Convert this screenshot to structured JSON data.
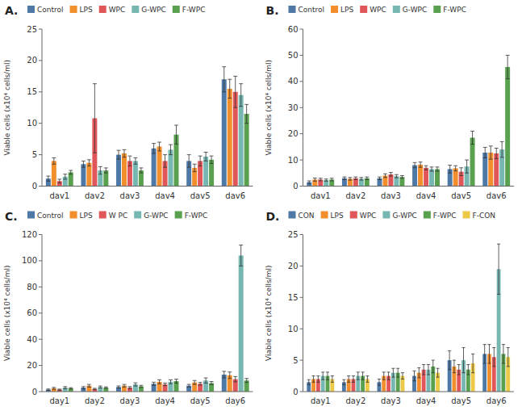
{
  "chart_data": [
    {
      "type": "bar",
      "title": "A.",
      "categories": [
        "dav1",
        "dav2",
        "dav3",
        "dav4",
        "dav5",
        "dav6"
      ],
      "ylabel": "Viable cells (x10⁴ cells/ml)",
      "ylim": [
        0,
        25
      ],
      "yticks": [
        0,
        5,
        10,
        15,
        20,
        25
      ],
      "grid": false,
      "legend": "upper left",
      "series": [
        {
          "name": "Control",
          "values": [
            1.2,
            3.5,
            5.0,
            6.0,
            4.0,
            17.0
          ],
          "errors": [
            0.4,
            0.5,
            0.7,
            0.8,
            1.0,
            2.0
          ]
        },
        {
          "name": "LPS",
          "values": [
            4.0,
            3.7,
            5.2,
            6.3,
            2.9,
            15.5
          ],
          "errors": [
            0.5,
            0.5,
            0.6,
            0.7,
            0.6,
            1.5
          ]
        },
        {
          "name": "WPC",
          "values": [
            0.8,
            10.8,
            4.0,
            4.0,
            4.0,
            15.0
          ],
          "errors": [
            0.3,
            5.5,
            0.8,
            1.0,
            0.8,
            2.5
          ]
        },
        {
          "name": "G-WPC",
          "values": [
            1.5,
            2.5,
            4.0,
            5.8,
            4.7,
            14.5
          ],
          "errors": [
            0.4,
            0.6,
            0.5,
            0.8,
            0.7,
            1.8
          ]
        },
        {
          "name": "F-WPC",
          "values": [
            2.2,
            2.5,
            2.5,
            8.2,
            4.2,
            11.5
          ],
          "errors": [
            0.3,
            0.4,
            0.4,
            1.5,
            0.6,
            1.5
          ]
        }
      ]
    },
    {
      "type": "bar",
      "title": "B.",
      "categories": [
        "dav1",
        "dav2",
        "dav3",
        "dav4",
        "dav5",
        "dav6"
      ],
      "ylabel": "Viable cells (x10⁴ cells/ml)",
      "ylim": [
        0,
        60
      ],
      "yticks": [
        0,
        10,
        20,
        30,
        40,
        50,
        60
      ],
      "grid": false,
      "legend": "upper left",
      "series": [
        {
          "name": "Control",
          "values": [
            1.5,
            3.0,
            3.0,
            8.0,
            6.5,
            12.8
          ],
          "errors": [
            0.5,
            0.5,
            0.5,
            1.0,
            1.5,
            2.0
          ]
        },
        {
          "name": "LPS",
          "values": [
            2.5,
            2.8,
            4.0,
            8.2,
            6.8,
            12.8
          ],
          "errors": [
            0.6,
            0.5,
            0.7,
            1.0,
            1.0,
            2.5
          ]
        },
        {
          "name": "WPC",
          "values": [
            2.5,
            3.0,
            4.5,
            7.0,
            5.5,
            12.5
          ],
          "errors": [
            0.5,
            0.5,
            0.7,
            0.8,
            1.5,
            2.0
          ]
        },
        {
          "name": "G-WPC",
          "values": [
            2.3,
            2.8,
            3.8,
            6.5,
            7.5,
            14.0
          ],
          "errors": [
            0.4,
            0.5,
            0.6,
            0.8,
            2.5,
            3.0
          ]
        },
        {
          "name": "F-WPC",
          "values": [
            2.5,
            3.0,
            3.5,
            6.5,
            18.5,
            45.5
          ],
          "errors": [
            0.5,
            0.5,
            0.5,
            0.8,
            2.5,
            4.5
          ]
        }
      ]
    },
    {
      "type": "bar",
      "title": "C.",
      "categories": [
        "day1",
        "day2",
        "day3",
        "day4",
        "day5",
        "day6"
      ],
      "ylabel": "Viable cells (x10⁴ cells/ml)",
      "ylim": [
        0,
        120
      ],
      "yticks": [
        0,
        20,
        40,
        60,
        80,
        100,
        120
      ],
      "grid": false,
      "legend": "upper left",
      "series": [
        {
          "name": "Control",
          "values": [
            1.5,
            3.0,
            3.5,
            6.0,
            4.5,
            13.0
          ],
          "errors": [
            0.5,
            0.8,
            0.8,
            1.2,
            1.0,
            2.5
          ]
        },
        {
          "name": "LPS",
          "values": [
            2.5,
            4.5,
            4.5,
            7.5,
            7.0,
            12.5
          ],
          "errors": [
            0.7,
            1.0,
            1.0,
            1.5,
            1.5,
            2.5
          ]
        },
        {
          "name": "W PC",
          "values": [
            1.5,
            2.0,
            3.0,
            5.5,
            6.0,
            9.5
          ],
          "errors": [
            0.4,
            0.5,
            0.8,
            1.0,
            1.0,
            2.0
          ]
        },
        {
          "name": "G-WPC",
          "values": [
            3.0,
            3.5,
            5.5,
            7.5,
            8.5,
            104.0
          ],
          "errors": [
            0.8,
            0.8,
            1.2,
            1.5,
            2.0,
            8.0
          ]
        },
        {
          "name": "F-WPC",
          "values": [
            2.5,
            3.0,
            4.0,
            8.0,
            6.5,
            8.5
          ],
          "errors": [
            0.5,
            0.6,
            0.8,
            1.5,
            1.2,
            1.5
          ]
        }
      ]
    },
    {
      "type": "bar",
      "title": "D.",
      "categories": [
        "day1",
        "day2",
        "day3",
        "day4",
        "day5",
        "day6"
      ],
      "ylabel": "Viable cells (x10⁴ cells/ml)",
      "ylim": [
        0,
        25
      ],
      "yticks": [
        0,
        5,
        10,
        15,
        20,
        25
      ],
      "grid": false,
      "legend": "upper left",
      "series": [
        {
          "name": "CON",
          "values": [
            1.5,
            1.5,
            1.5,
            2.5,
            5.0,
            6.0
          ],
          "errors": [
            0.4,
            0.4,
            0.5,
            0.8,
            1.5,
            1.5
          ]
        },
        {
          "name": "LPS",
          "values": [
            2.0,
            2.0,
            2.5,
            3.0,
            4.0,
            6.0
          ],
          "errors": [
            0.5,
            0.5,
            0.6,
            0.8,
            1.0,
            1.5
          ]
        },
        {
          "name": "WPC",
          "values": [
            2.0,
            2.0,
            2.5,
            3.5,
            3.5,
            5.5
          ],
          "errors": [
            0.5,
            0.5,
            0.6,
            0.8,
            0.8,
            1.5
          ]
        },
        {
          "name": "G-WPC",
          "values": [
            2.5,
            2.5,
            3.0,
            3.5,
            5.0,
            19.5
          ],
          "errors": [
            0.6,
            0.6,
            0.7,
            0.8,
            2.0,
            4.0
          ]
        },
        {
          "name": "F-WPC",
          "values": [
            2.5,
            2.5,
            3.0,
            4.0,
            3.5,
            6.0
          ],
          "errors": [
            0.6,
            0.6,
            0.7,
            1.0,
            0.8,
            1.5
          ]
        },
        {
          "name": "F-CON",
          "values": [
            2.0,
            2.0,
            2.5,
            3.0,
            4.5,
            5.5
          ],
          "errors": [
            0.5,
            0.5,
            0.5,
            0.7,
            1.5,
            1.5
          ]
        }
      ]
    }
  ]
}
